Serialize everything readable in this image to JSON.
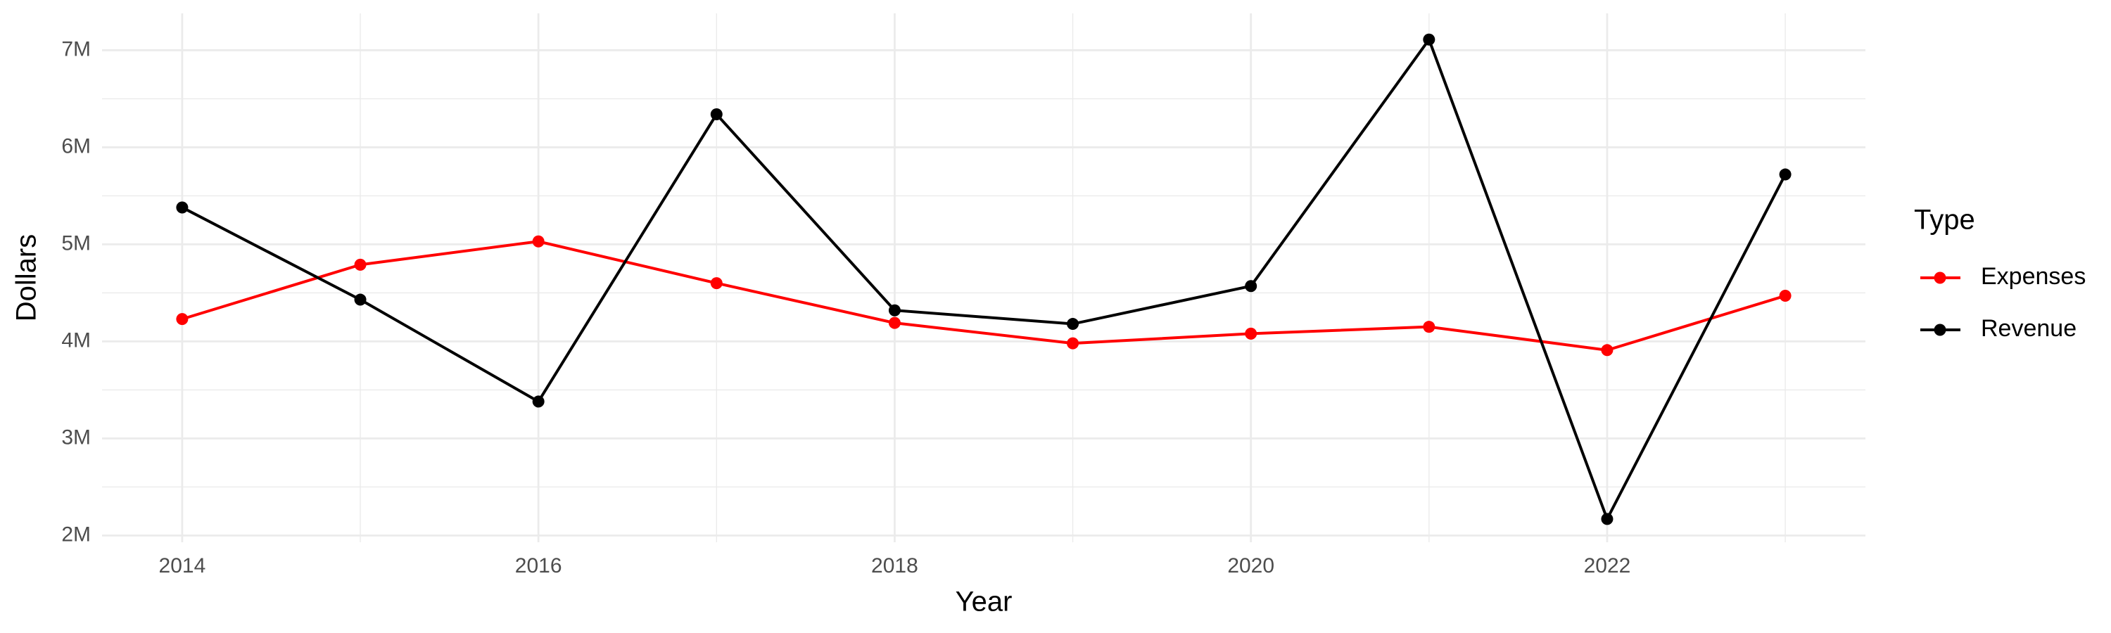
{
  "chart_data": {
    "type": "line",
    "x_label": "Year",
    "y_label": "Dollars",
    "legend_title": "Type",
    "legend_position": "right",
    "grid": true,
    "x": [
      2014,
      2015,
      2016,
      2017,
      2018,
      2019,
      2020,
      2021,
      2022,
      2023
    ],
    "series": [
      {
        "name": "Expenses",
        "color": "#ff0000",
        "values": [
          4230000,
          4790000,
          5030000,
          4600000,
          4190000,
          3980000,
          4080000,
          4150000,
          3910000,
          4470000
        ]
      },
      {
        "name": "Revenue",
        "color": "#000000",
        "values": [
          5380000,
          4430000,
          3380000,
          6340000,
          4320000,
          4180000,
          4570000,
          7110000,
          2170000,
          5720000
        ]
      }
    ],
    "xlim": [
      2013.55,
      2023.45
    ],
    "xticks": [
      2014,
      2016,
      2018,
      2020,
      2022
    ],
    "ylim": [
      1930000,
      7380000
    ],
    "yticks": [
      {
        "value": 2000000,
        "label": "2M"
      },
      {
        "value": 3000000,
        "label": "3M"
      },
      {
        "value": 4000000,
        "label": "4M"
      },
      {
        "value": 5000000,
        "label": "5M"
      },
      {
        "value": 6000000,
        "label": "6M"
      },
      {
        "value": 7000000,
        "label": "7M"
      }
    ]
  }
}
